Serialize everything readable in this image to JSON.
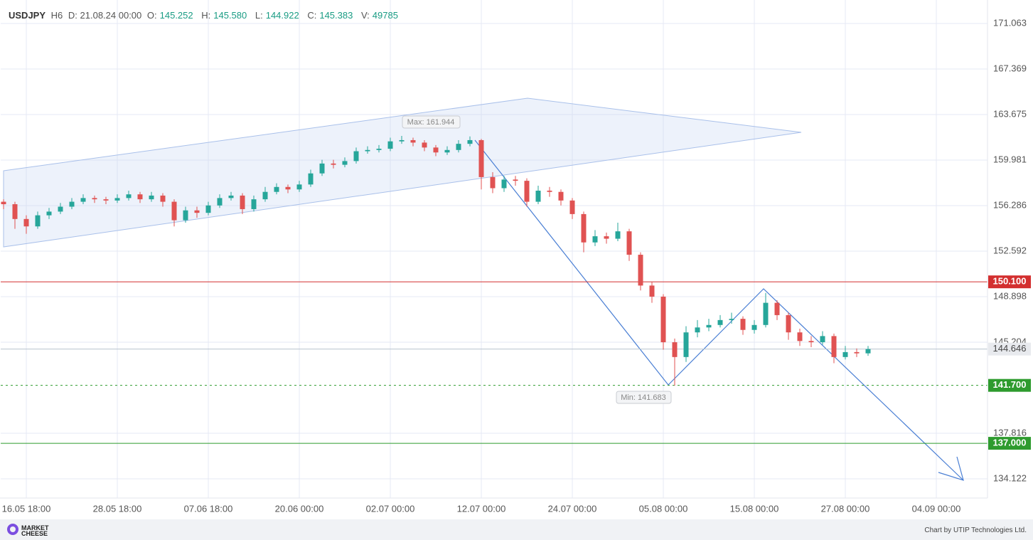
{
  "chart_data": {
    "type": "candlestick",
    "header": {
      "symbol": "USDJPY",
      "timeframe": "H6",
      "date": "D: 21.08.24 00:00",
      "o_label": "O:",
      "o": "145.252",
      "h_label": "H:",
      "h": "145.580",
      "l_label": "L:",
      "l": "144.922",
      "c_label": "C:",
      "c": "145.383",
      "v_label": "V:",
      "v": "49785"
    },
    "x": [
      1,
      5,
      9,
      13,
      17,
      21,
      25,
      29,
      33,
      37,
      41,
      45,
      49,
      53,
      57,
      61,
      65,
      69,
      73,
      77,
      81,
      85,
      89,
      93,
      97,
      101,
      105,
      109,
      113,
      117,
      121,
      125,
      129,
      133,
      137,
      141,
      145,
      149,
      153,
      157,
      161,
      165,
      169,
      173,
      177,
      181,
      185,
      189,
      193,
      197,
      201,
      205,
      209,
      213,
      217,
      221,
      225,
      229,
      233,
      237,
      241,
      245,
      249,
      253,
      257,
      261,
      265,
      269,
      273,
      277,
      281,
      285,
      289,
      293,
      297,
      301,
      305
    ],
    "open": [
      156.6,
      156.4,
      155.2,
      154.6,
      155.5,
      155.8,
      156.2,
      156.6,
      156.9,
      156.8,
      156.7,
      156.9,
      157.2,
      156.8,
      157.1,
      156.6,
      155.1,
      155.9,
      155.7,
      156.3,
      156.9,
      157.1,
      156.0,
      156.8,
      157.4,
      157.8,
      157.6,
      158.0,
      158.9,
      159.7,
      159.6,
      159.9,
      160.7,
      160.8,
      160.9,
      161.5,
      161.6,
      161.4,
      161.0,
      160.6,
      160.8,
      161.3,
      161.6,
      158.6,
      157.7,
      158.4,
      158.3,
      156.6,
      157.5,
      157.4,
      156.7,
      155.6,
      153.3,
      153.8,
      153.6,
      154.2,
      152.3,
      149.8,
      148.9,
      145.2,
      144.0,
      146.0,
      146.4,
      146.6,
      147.0,
      147.1,
      146.2,
      146.6,
      148.4,
      147.4,
      146.0,
      145.3,
      145.2,
      145.7,
      144.0,
      144.4,
      144.3
    ],
    "high": [
      156.8,
      156.6,
      155.5,
      155.8,
      156.1,
      156.5,
      156.9,
      157.2,
      157.1,
      157.0,
      157.2,
      157.5,
      157.4,
      157.4,
      157.3,
      156.8,
      156.2,
      156.2,
      156.6,
      157.2,
      157.4,
      157.3,
      157.1,
      157.8,
      158.1,
      158.0,
      158.3,
      159.2,
      160.0,
      160.0,
      160.2,
      161.0,
      161.1,
      161.2,
      161.8,
      161.944,
      161.8,
      161.6,
      161.2,
      161.1,
      161.6,
      161.9,
      161.7,
      159.0,
      158.7,
      158.7,
      158.5,
      157.9,
      157.8,
      157.6,
      156.9,
      155.8,
      154.3,
      154.1,
      154.9,
      154.4,
      152.5,
      150.1,
      149.1,
      145.5,
      146.5,
      147.0,
      147.1,
      147.4,
      147.6,
      147.3,
      147.0,
      149.2,
      148.6,
      147.6,
      146.3,
      145.7,
      146.1,
      145.9,
      144.9,
      144.7,
      144.9
    ],
    "low": [
      156.0,
      154.4,
      154.0,
      154.4,
      155.2,
      155.6,
      156.0,
      156.4,
      156.5,
      156.4,
      156.5,
      156.7,
      156.5,
      156.6,
      156.2,
      154.6,
      154.9,
      155.3,
      155.5,
      156.1,
      156.7,
      155.6,
      155.8,
      156.6,
      157.2,
      157.3,
      157.4,
      157.8,
      158.7,
      159.3,
      159.4,
      159.7,
      160.5,
      160.6,
      160.7,
      161.3,
      161.1,
      160.7,
      160.3,
      160.4,
      160.6,
      161.1,
      157.6,
      157.3,
      157.4,
      157.9,
      156.2,
      156.4,
      157.0,
      156.3,
      155.2,
      152.5,
      153.0,
      153.2,
      153.4,
      151.8,
      149.4,
      148.4,
      144.6,
      141.683,
      143.6,
      145.6,
      146.1,
      146.4,
      146.7,
      145.8,
      145.9,
      146.4,
      147.0,
      145.4,
      144.9,
      144.8,
      145.0,
      143.5,
      143.8,
      144.0,
      144.1
    ],
    "close": [
      156.4,
      155.2,
      154.6,
      155.5,
      155.8,
      156.2,
      156.6,
      156.9,
      156.8,
      156.7,
      156.9,
      157.2,
      156.8,
      157.1,
      156.6,
      155.1,
      155.9,
      155.7,
      156.3,
      156.9,
      157.1,
      156.0,
      156.8,
      157.4,
      157.8,
      157.6,
      158.0,
      158.9,
      159.7,
      159.6,
      159.9,
      160.7,
      160.8,
      160.9,
      161.5,
      161.6,
      161.4,
      161.0,
      160.6,
      160.8,
      161.3,
      161.6,
      158.6,
      157.7,
      158.4,
      158.3,
      156.6,
      157.5,
      157.4,
      156.7,
      155.6,
      153.3,
      153.8,
      153.6,
      154.2,
      152.3,
      149.8,
      148.9,
      145.2,
      144.0,
      146.0,
      146.4,
      146.6,
      147.0,
      147.1,
      146.2,
      146.6,
      148.4,
      147.4,
      146.0,
      145.3,
      145.2,
      145.7,
      144.0,
      144.4,
      144.3,
      144.646
    ],
    "up_color": "#26a69a",
    "down_color": "#e05252",
    "xlim": [
      0,
      347
    ],
    "ylim": [
      132.56,
      172.97
    ],
    "xticks": [
      {
        "value": 9,
        "label": "16.05 18:00"
      },
      {
        "value": 41,
        "label": "28.05 18:00"
      },
      {
        "value": 73,
        "label": "07.06 18:00"
      },
      {
        "value": 105,
        "label": "20.06 00:00"
      },
      {
        "value": 137,
        "label": "02.07 00:00"
      },
      {
        "value": 169,
        "label": "12.07 00:00"
      },
      {
        "value": 201,
        "label": "24.07 00:00"
      },
      {
        "value": 233,
        "label": "05.08 00:00"
      },
      {
        "value": 265,
        "label": "15.08 00:00"
      },
      {
        "value": 297,
        "label": "27.08 00:00"
      },
      {
        "value": 329,
        "label": "04.09 00:00"
      }
    ],
    "yticks": [
      171.063,
      167.369,
      163.675,
      159.981,
      156.286,
      152.592,
      148.898,
      145.204,
      137.816,
      134.122
    ],
    "grid": true,
    "levels": [
      {
        "value": 150.1,
        "label": "150.100",
        "color": "#d32f2f",
        "style": "solid"
      },
      {
        "value": 141.7,
        "label": "141.700",
        "color": "#2e9b2e",
        "style": "dashed"
      },
      {
        "value": 137,
        "label": "137.000",
        "color": "#2e9b2e",
        "style": "solid"
      }
    ],
    "current_price": 144.646,
    "annotations": {
      "max": "Max: 161.944",
      "min": "Min: 141.683"
    },
    "footer": {
      "logo": "MARKET CHEESE",
      "credit": "Chart by UTIP Technologies Ltd."
    }
  }
}
